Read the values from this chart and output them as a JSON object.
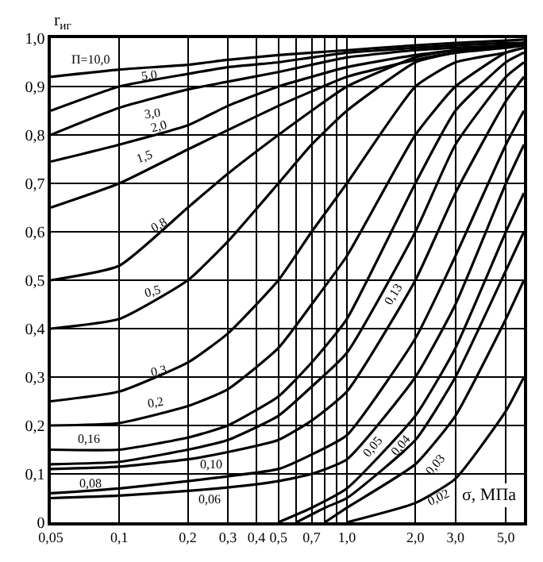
{
  "chart_data": {
    "type": "line",
    "ylabel": "r$_{иг}$",
    "xlabel": "σ, МПа",
    "log": "x",
    "grid": true,
    "legend": false,
    "marker": "none",
    "line_style": "solid",
    "xlim": [
      0.05,
      6
    ],
    "ylim": [
      0,
      1.0
    ],
    "xticks": [
      {
        "value": 0.05,
        "label": "0,05"
      },
      {
        "value": 0.1,
        "label": "0,1"
      },
      {
        "value": 0.2,
        "label": "0,2"
      },
      {
        "value": 0.3,
        "label": "0,3"
      },
      {
        "value": 0.4,
        "label": "0,4"
      },
      {
        "value": 0.5,
        "label": "0,5"
      },
      {
        "value": 0.6,
        "label": null
      },
      {
        "value": 0.7,
        "label": "0,7"
      },
      {
        "value": 0.8,
        "label": null
      },
      {
        "value": 0.9,
        "label": null
      },
      {
        "value": 1.0,
        "label": "1,0"
      },
      {
        "value": 2.0,
        "label": "2,0"
      },
      {
        "value": 3.0,
        "label": "3,0"
      },
      {
        "value": 5.0,
        "label": "5,0"
      }
    ],
    "yticks": [
      0,
      {
        "value": 0.1,
        "label": "0,1"
      },
      {
        "value": 0.2,
        "label": "0,2"
      },
      {
        "value": 0.3,
        "label": "0,3"
      },
      {
        "value": 0.4,
        "label": "0,4"
      },
      {
        "value": 0.5,
        "label": "0,5"
      },
      {
        "value": 0.6,
        "label": "0,6"
      },
      {
        "value": 0.7,
        "label": "0,7"
      },
      {
        "value": 0.8,
        "label": "0,8"
      },
      {
        "value": 0.9,
        "label": "0,9"
      },
      {
        "value": 1.0,
        "label": "1,0"
      }
    ],
    "x": [
      0.05,
      0.1,
      0.2,
      0.3,
      0.5,
      0.7,
      1.0,
      2.0,
      3.0,
      5.0,
      6.0
    ],
    "series": [
      {
        "name": "П=10,0",
        "color": "#000000",
        "values": [
          0.92,
          0.935,
          0.945,
          0.955,
          0.965,
          0.97,
          0.975,
          0.985,
          0.99,
          0.995,
          0.997
        ]
      },
      {
        "name": "5,0",
        "color": "#000000",
        "values": [
          0.85,
          0.9,
          0.926,
          0.94,
          0.95,
          0.96,
          0.97,
          0.98,
          0.985,
          0.99,
          0.99
        ]
      },
      {
        "name": "3,0",
        "color": "#000000",
        "values": [
          0.8,
          0.856,
          0.894,
          0.91,
          0.93,
          0.945,
          0.96,
          0.975,
          0.98,
          0.985,
          0.99
        ]
      },
      {
        "name": "2,0",
        "color": "#000000",
        "values": [
          0.745,
          0.78,
          0.82,
          0.86,
          0.9,
          0.92,
          0.94,
          0.965,
          0.975,
          0.985,
          0.99
        ]
      },
      {
        "name": "1,5",
        "color": "#000000",
        "values": [
          0.65,
          0.7,
          0.77,
          0.81,
          0.86,
          0.89,
          0.92,
          0.955,
          0.97,
          0.98,
          0.985
        ]
      },
      {
        "name": "0,8",
        "color": "#000000",
        "values": [
          0.5,
          0.53,
          0.65,
          0.72,
          0.8,
          0.85,
          0.9,
          0.96,
          0.975,
          0.985,
          0.99
        ]
      },
      {
        "name": "0,5",
        "color": "#000000",
        "values": [
          0.4,
          0.42,
          0.5,
          0.58,
          0.7,
          0.78,
          0.85,
          0.95,
          0.97,
          0.985,
          0.99
        ]
      },
      {
        "name": "0,3",
        "color": "#000000",
        "values": [
          0.25,
          0.27,
          0.33,
          0.39,
          0.5,
          0.6,
          0.7,
          0.9,
          0.95,
          0.97,
          0.98
        ]
      },
      {
        "name": "0,2",
        "color": "#000000",
        "values": [
          0.2,
          0.205,
          0.24,
          0.275,
          0.36,
          0.45,
          0.55,
          0.8,
          0.9,
          0.97,
          0.98
        ]
      },
      {
        "name": "0,16",
        "color": "#000000",
        "values": [
          0.15,
          0.15,
          0.175,
          0.2,
          0.26,
          0.33,
          0.42,
          0.7,
          0.85,
          0.95,
          0.97
        ]
      },
      {
        "name": "0,13",
        "color": "#000000",
        "values": [
          0.12,
          0.125,
          0.15,
          0.17,
          0.22,
          0.28,
          0.35,
          0.6,
          0.78,
          0.92,
          0.95
        ]
      },
      {
        "name": "0,10",
        "color": "#000000",
        "values": [
          0.11,
          0.115,
          0.13,
          0.145,
          0.17,
          0.21,
          0.27,
          0.5,
          0.68,
          0.87,
          0.92
        ]
      },
      {
        "name": "0,08",
        "color": "#000000",
        "values": [
          0.06,
          0.07,
          0.085,
          0.095,
          0.11,
          0.14,
          0.18,
          0.38,
          0.55,
          0.78,
          0.85
        ]
      },
      {
        "name": "0,06",
        "color": "#000000",
        "values": [
          0.05,
          0.055,
          0.065,
          0.072,
          0.085,
          0.1,
          0.13,
          0.3,
          0.45,
          0.7,
          0.78
        ]
      },
      {
        "name": "0,05",
        "color": "#000000",
        "x": [
          0.5,
          0.7,
          1.0,
          2.0,
          3.0,
          5.0,
          6.0
        ],
        "values": [
          0.0,
          0.03,
          0.07,
          0.22,
          0.36,
          0.6,
          0.68
        ]
      },
      {
        "name": "0,04",
        "color": "#000000",
        "x": [
          0.6,
          0.8,
          1.0,
          2.0,
          3.0,
          5.0,
          6.0
        ],
        "values": [
          0.0,
          0.03,
          0.05,
          0.17,
          0.3,
          0.52,
          0.6
        ]
      },
      {
        "name": "0,03",
        "color": "#000000",
        "x": [
          0.8,
          1.0,
          2.0,
          3.0,
          5.0,
          6.0
        ],
        "values": [
          0.0,
          0.03,
          0.12,
          0.22,
          0.42,
          0.5
        ]
      },
      {
        "name": "0,02",
        "color": "#000000",
        "x": [
          1.0,
          2.0,
          3.0,
          5.0,
          6.0
        ],
        "values": [
          0.0,
          0.04,
          0.09,
          0.23,
          0.3
        ]
      }
    ]
  }
}
